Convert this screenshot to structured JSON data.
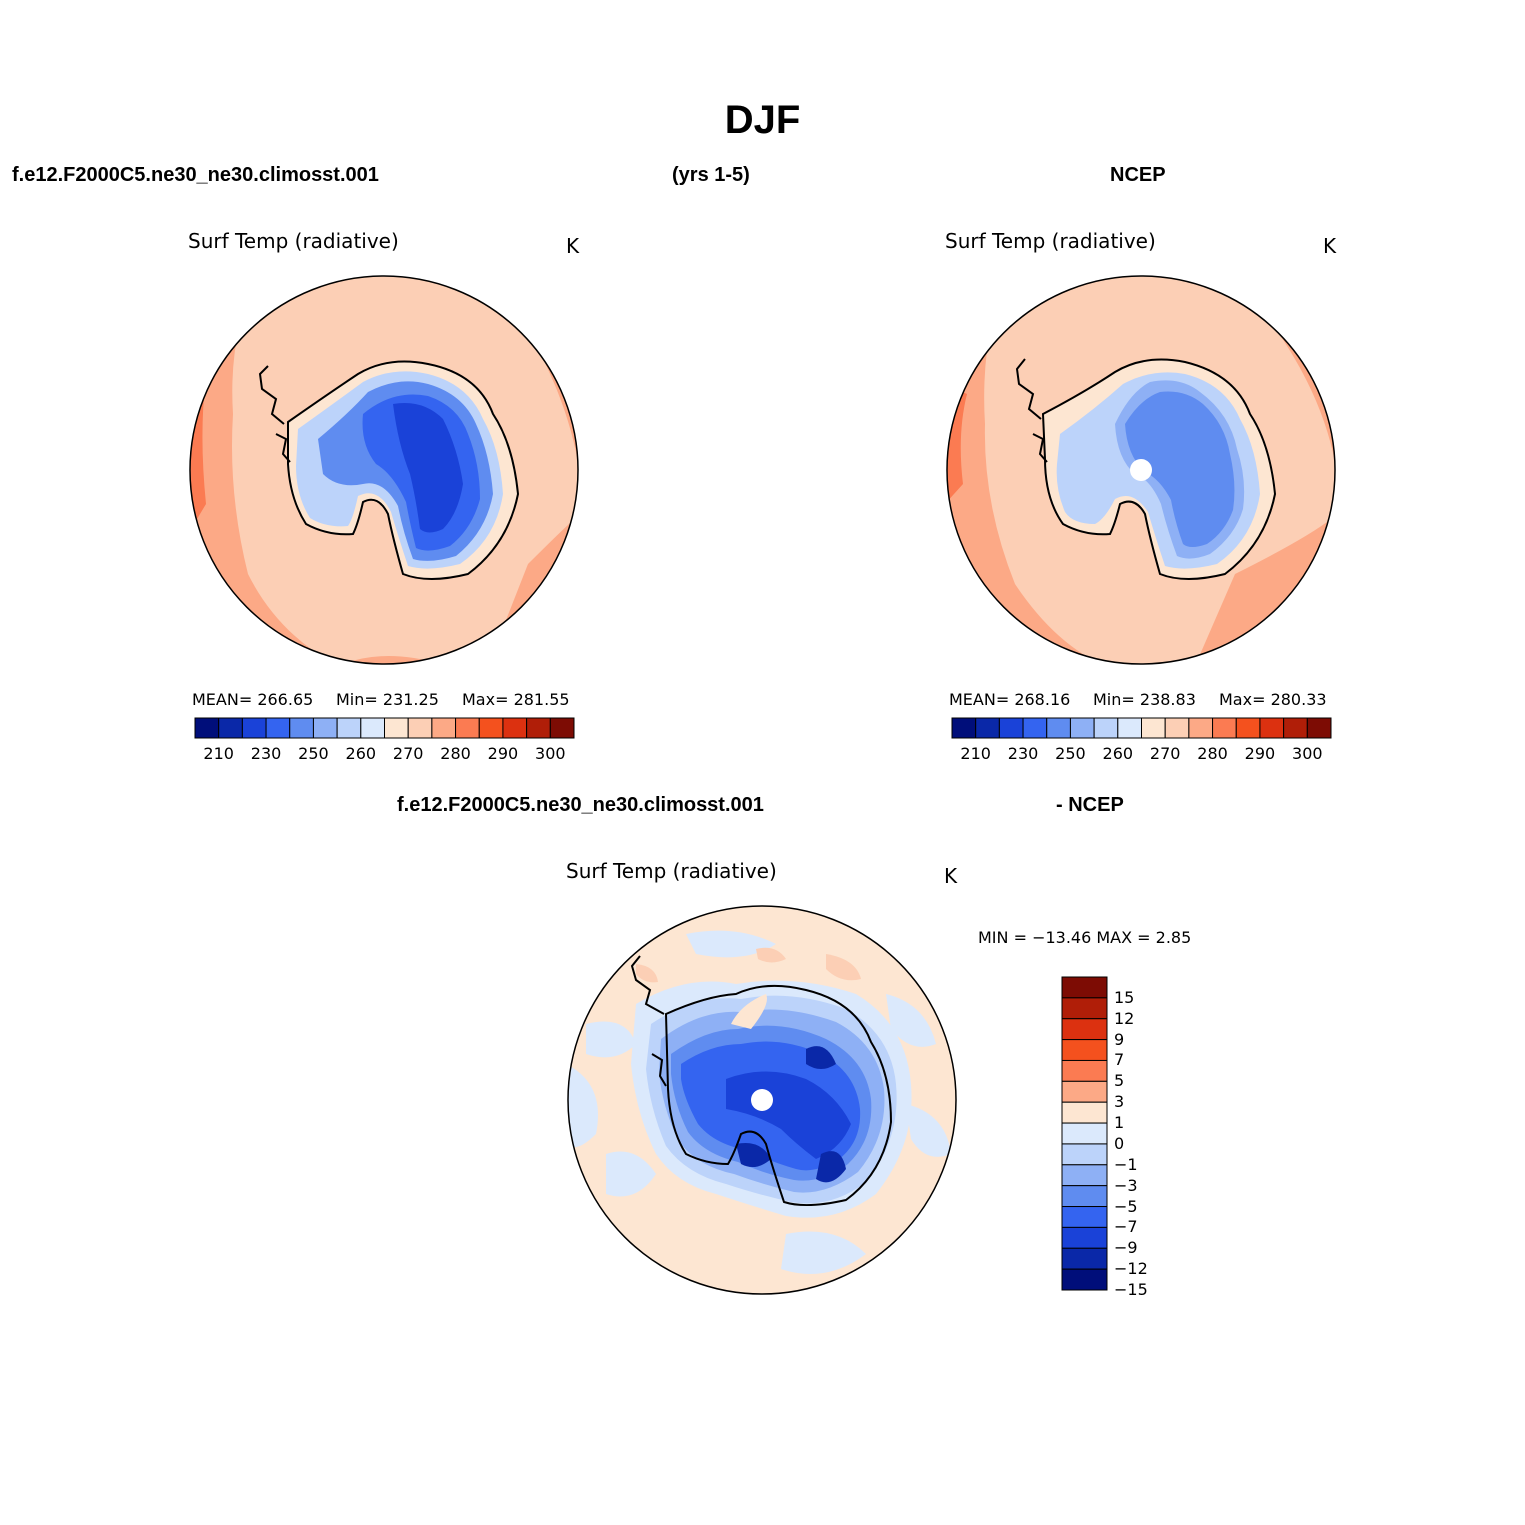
{
  "figure": {
    "title": "DJF",
    "header_left": "f.e12.F2000C5.ne30_ne30.climosst.001",
    "header_mid": "(yrs 1-5)",
    "header_right": "NCEP",
    "diff_header_left": "f.e12.F2000C5.ne30_ne30.climosst.001",
    "diff_header_right": "- NCEP"
  },
  "panels": {
    "model": {
      "title": "Surf Temp (radiative)",
      "units": "K",
      "mean": "MEAN= 266.65",
      "min": "Min= 231.25",
      "max": "Max= 281.55"
    },
    "obs": {
      "title": "Surf Temp (radiative)",
      "units": "K",
      "mean": "MEAN= 268.16",
      "min": "Min= 238.83",
      "max": "Max= 280.33"
    },
    "diff": {
      "title": "Surf Temp (radiative)",
      "units": "K",
      "minmax": "MIN = −13.46 MAX =    2.85"
    }
  },
  "colorbar_abs": {
    "colors": [
      "#000e7a",
      "#0a28a8",
      "#1a42d8",
      "#3464f0",
      "#5f8cf0",
      "#8eb0f5",
      "#bcd3fa",
      "#dbe9fc",
      "#fde6d2",
      "#fccfb5",
      "#fca986",
      "#fb7b52",
      "#f4511e",
      "#dc3110",
      "#b01e08",
      "#7d0c04"
    ],
    "labels": [
      "210",
      "230",
      "250",
      "260",
      "270",
      "280",
      "290",
      "300"
    ]
  },
  "colorbar_diff": {
    "colors": [
      "#7d0c04",
      "#b01e08",
      "#dc3110",
      "#f4511e",
      "#fb7b52",
      "#fca986",
      "#fde6d2",
      "#dbe9fc",
      "#bcd3fa",
      "#8eb0f5",
      "#5f8cf0",
      "#3464f0",
      "#1a42d8",
      "#0a28a8",
      "#000e7a"
    ],
    "labels": [
      "15",
      "12",
      "9",
      "7",
      "5",
      "3",
      "1",
      "0",
      "−1",
      "−3",
      "−5",
      "−7",
      "−9",
      "−12",
      "−15"
    ]
  },
  "chart_data": [
    {
      "type": "heatmap",
      "title": "Surf Temp (radiative)",
      "units": "K",
      "projection": "south polar stereographic",
      "stats": {
        "mean": 266.65,
        "min": 231.25,
        "max": 281.55
      },
      "color_levels": [
        210,
        230,
        250,
        260,
        270,
        280,
        290,
        300
      ]
    },
    {
      "type": "heatmap",
      "title": "Surf Temp (radiative)",
      "units": "K",
      "projection": "south polar stereographic",
      "stats": {
        "mean": 268.16,
        "min": 238.83,
        "max": 280.33
      },
      "color_levels": [
        210,
        230,
        250,
        260,
        270,
        280,
        290,
        300
      ]
    },
    {
      "type": "heatmap",
      "title": "Surf Temp (radiative)",
      "units": "K",
      "projection": "south polar stereographic",
      "stats": {
        "min": -13.46,
        "max": 2.85
      },
      "color_levels": [
        -15,
        -12,
        -9,
        -7,
        -5,
        -3,
        -1,
        0,
        1,
        3,
        5,
        7,
        9,
        12,
        15
      ]
    }
  ]
}
